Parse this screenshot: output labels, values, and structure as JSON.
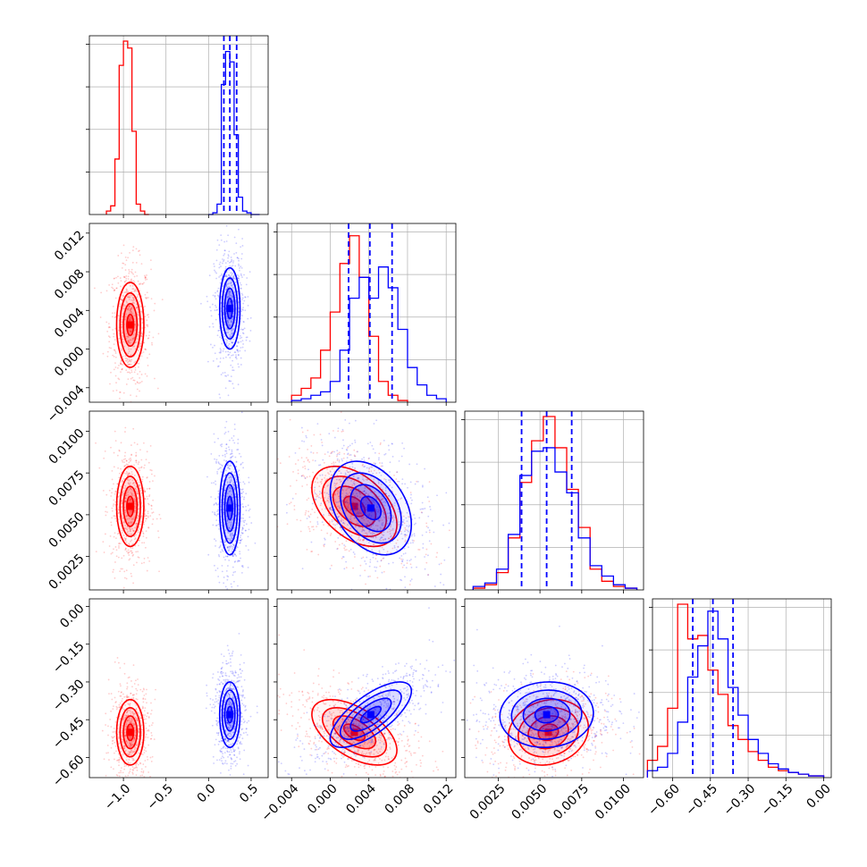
{
  "chart_data": {
    "type": "corner",
    "colors": {
      "series_a": "#ff0000",
      "series_b": "#0000ff",
      "grid": "#b0b0b0"
    },
    "grid": true,
    "series": [
      {
        "color": "#ff0000",
        "means": [
          -0.92,
          0.0025,
          0.0055,
          -0.5
        ],
        "sds": [
          0.08,
          0.0022,
          0.0012,
          0.065
        ],
        "corr": {
          "1-0": 0.0,
          "2-0": 0.0,
          "2-1": -0.45,
          "3-0": 0.0,
          "3-1": -0.55,
          "3-2": 0.15
        },
        "histograms": [
          {
            "edges": [
              -1.2,
              -1.15,
              -1.1,
              -1.05,
              -1.0,
              -0.95,
              -0.9,
              -0.85,
              -0.8,
              -0.75,
              -0.7
            ],
            "counts": [
              0.02,
              0.05,
              0.32,
              0.86,
              1.0,
              0.96,
              0.48,
              0.06,
              0.02,
              0.0
            ]
          },
          {
            "edges": [
              -0.004,
              -0.003,
              -0.002,
              -0.001,
              0.0,
              0.001,
              0.002,
              0.003,
              0.004,
              0.005,
              0.006,
              0.007,
              0.008
            ],
            "counts": [
              0.04,
              0.08,
              0.14,
              0.3,
              0.52,
              0.8,
              0.96,
              0.72,
              0.38,
              0.12,
              0.04,
              0.01
            ]
          },
          {
            "edges": [
              0.001,
              0.0017,
              0.0024,
              0.0031,
              0.0038,
              0.0045,
              0.0052,
              0.0059,
              0.0066,
              0.0073,
              0.008,
              0.0087,
              0.0094,
              0.0101,
              0.0108
            ],
            "counts": [
              0.01,
              0.03,
              0.1,
              0.3,
              0.62,
              0.86,
              1.0,
              0.82,
              0.58,
              0.36,
              0.12,
              0.05,
              0.02,
              0.01
            ]
          },
          {
            "edges": [
              -0.7,
              -0.66,
              -0.62,
              -0.58,
              -0.54,
              -0.5,
              -0.46,
              -0.42,
              -0.38,
              -0.34,
              -0.3,
              -0.26,
              -0.22,
              -0.18,
              -0.14,
              -0.1,
              -0.06,
              -0.02,
              0.0
            ],
            "counts": [
              0.1,
              0.18,
              0.4,
              1.0,
              0.8,
              0.82,
              0.62,
              0.48,
              0.3,
              0.22,
              0.15,
              0.1,
              0.06,
              0.04,
              0.03,
              0.02,
              0.01,
              0.01
            ]
          }
        ]
      },
      {
        "color": "#0000ff",
        "means": [
          0.25,
          0.0042,
          0.0054,
          -0.43
        ],
        "sds": [
          0.06,
          0.0021,
          0.0014,
          0.065
        ],
        "corr": {
          "1-0": 0.0,
          "2-0": 0.0,
          "2-1": -0.35,
          "3-0": 0.0,
          "3-1": 0.72,
          "3-2": 0.05
        },
        "quantiles": [
          [
            0.18,
            0.25,
            0.33
          ],
          [
            0.0019,
            0.0041,
            0.0064
          ],
          [
            0.0039,
            0.0054,
            0.0069
          ],
          [
            -0.52,
            -0.44,
            -0.36
          ]
        ],
        "histograms": [
          {
            "edges": [
              0.0,
              0.05,
              0.1,
              0.15,
              0.2,
              0.25,
              0.3,
              0.35,
              0.4,
              0.45,
              0.5,
              0.55,
              0.6
            ],
            "counts": [
              0.0,
              0.01,
              0.06,
              0.75,
              0.94,
              0.88,
              0.46,
              0.1,
              0.02,
              0.01,
              0.0,
              0.0
            ]
          },
          {
            "edges": [
              -0.004,
              -0.003,
              -0.002,
              -0.001,
              0.0,
              0.001,
              0.002,
              0.003,
              0.004,
              0.005,
              0.006,
              0.007,
              0.008,
              0.009,
              0.01,
              0.011,
              0.012
            ],
            "counts": [
              0.01,
              0.02,
              0.04,
              0.06,
              0.12,
              0.3,
              0.6,
              0.72,
              0.6,
              0.78,
              0.66,
              0.42,
              0.2,
              0.1,
              0.04,
              0.02
            ]
          },
          {
            "edges": [
              0.001,
              0.0017,
              0.0024,
              0.0031,
              0.0038,
              0.0045,
              0.0052,
              0.0059,
              0.0066,
              0.0073,
              0.008,
              0.0087,
              0.0094,
              0.0101,
              0.0108
            ],
            "counts": [
              0.02,
              0.04,
              0.12,
              0.32,
              0.66,
              0.8,
              0.82,
              0.68,
              0.56,
              0.3,
              0.14,
              0.08,
              0.03,
              0.01
            ]
          },
          {
            "edges": [
              -0.7,
              -0.66,
              -0.62,
              -0.58,
              -0.54,
              -0.5,
              -0.46,
              -0.42,
              -0.38,
              -0.34,
              -0.3,
              -0.26,
              -0.22,
              -0.18,
              -0.14,
              -0.1,
              -0.06,
              -0.02,
              0.0
            ],
            "counts": [
              0.04,
              0.06,
              0.14,
              0.32,
              0.58,
              0.76,
              0.96,
              0.8,
              0.52,
              0.36,
              0.22,
              0.14,
              0.08,
              0.05,
              0.03,
              0.02,
              0.01,
              0.01
            ]
          }
        ]
      }
    ],
    "ranges": [
      [
        -1.4,
        0.7
      ],
      [
        -0.0055,
        0.013
      ],
      [
        0.0005,
        0.0112
      ],
      [
        -0.68,
        0.03
      ]
    ],
    "ticks": [
      {
        "values": [
          -1.0,
          -0.5,
          0.0,
          0.5
        ],
        "labels": [
          "−1.0",
          "−0.5",
          "0.0",
          "0.5"
        ]
      },
      {
        "values": [
          -0.004,
          0.0,
          0.004,
          0.008,
          0.012
        ],
        "labels": [
          "−0.004",
          "0.000",
          "0.004",
          "0.008",
          "0.012"
        ]
      },
      {
        "values": [
          0.0025,
          0.005,
          0.0075,
          0.01
        ],
        "labels": [
          "0.0025",
          "0.0050",
          "0.0075",
          "0.0100"
        ]
      },
      {
        "values": [
          -0.6,
          -0.45,
          -0.3,
          -0.15,
          0.0
        ],
        "labels": [
          "−0.60",
          "−0.45",
          "−0.30",
          "−0.15",
          "0.00"
        ]
      }
    ],
    "row_tick_sets": {
      "row1": [
        -0.004,
        0.0,
        0.004,
        0.008,
        0.012
      ],
      "row1_labels": [
        "−0.004",
        "0.000",
        "0.004",
        "0.008",
        "0.012"
      ],
      "row2": [
        0.0025,
        0.005,
        0.0075,
        0.01
      ],
      "row2_labels": [
        "0.0025",
        "0.0050",
        "0.0075",
        "0.0100"
      ],
      "row3": [
        -0.6,
        -0.45,
        -0.3,
        -0.15,
        0.0
      ],
      "row3_labels": [
        "−0.60",
        "−0.45",
        "−0.30",
        "−0.15",
        "0.00"
      ]
    }
  }
}
